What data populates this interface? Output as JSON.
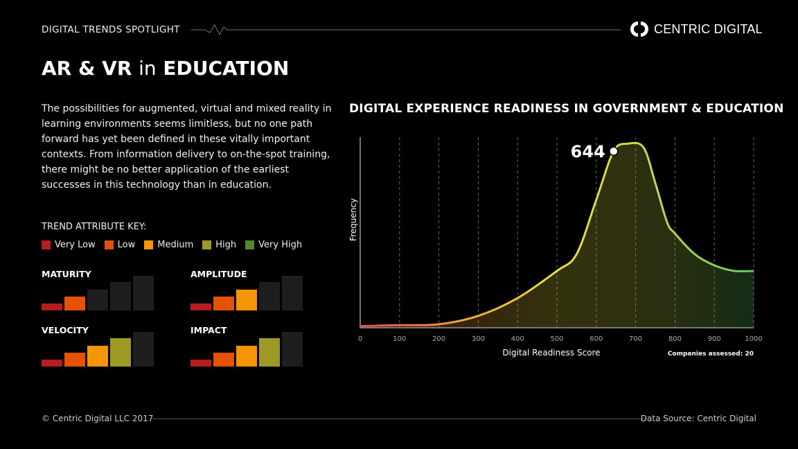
{
  "header": {
    "kicker": "DIGITAL TRENDS SPOTLIGHT",
    "logo_text": "CENTRIC DIGITAL"
  },
  "title": {
    "part1": "AR & VR",
    "part2": "in",
    "part3": "EDUCATION"
  },
  "description": "The possibilities for augmented, virtual and mixed reality in learning environments seems limitless, but no one path forward has yet been defined in these vitally important contexts. From information delivery to on-the-spot training, there might be no better application of the earliest successes in this technology than in education.",
  "key": {
    "title": "TREND ATTRIBUTE KEY:",
    "levels": [
      {
        "label": "Very Low",
        "color": "#b81c1c"
      },
      {
        "label": "Low",
        "color": "#e35205"
      },
      {
        "label": "Medium",
        "color": "#f59505"
      },
      {
        "label": "High",
        "color": "#9c9a25"
      },
      {
        "label": "Very High",
        "color": "#528a2c"
      }
    ]
  },
  "attributes": [
    {
      "name": "MATURITY",
      "level": 2
    },
    {
      "name": "AMPLITUDE",
      "level": 3
    },
    {
      "name": "VELOCITY",
      "level": 4
    },
    {
      "name": "IMPACT",
      "level": 4
    }
  ],
  "chart_data": {
    "type": "area",
    "title": "DIGITAL EXPERIENCE READINESS IN GOVERNMENT & EDUCATION",
    "xlabel": "Digital Readiness Score",
    "ylabel": "Frequency",
    "xlim": [
      0,
      1000
    ],
    "ylim": [
      0,
      100
    ],
    "xticks": [
      0,
      100,
      200,
      300,
      400,
      500,
      600,
      700,
      800,
      900,
      1000
    ],
    "grid": "vertical dashed",
    "x": [
      0,
      100,
      200,
      300,
      400,
      500,
      550,
      600,
      644,
      680,
      720,
      750,
      780,
      800,
      850,
      900,
      950,
      1000
    ],
    "y": [
      0.5,
      1,
      1.5,
      6,
      15.5,
      30,
      39,
      68,
      94,
      98,
      96,
      77,
      56,
      50,
      39,
      33,
      30,
      30
    ],
    "annotation": {
      "label": "644",
      "x": 644
    },
    "note": "Companies assessed: 20",
    "gradient_colors": [
      "#e84a4a",
      "#f5a03a",
      "#e8e040",
      "#c8d84a",
      "#5ec860"
    ]
  },
  "footer": {
    "copyright": "© Centric Digital LLC 2017",
    "source": "Data Source: Centric Digital"
  }
}
